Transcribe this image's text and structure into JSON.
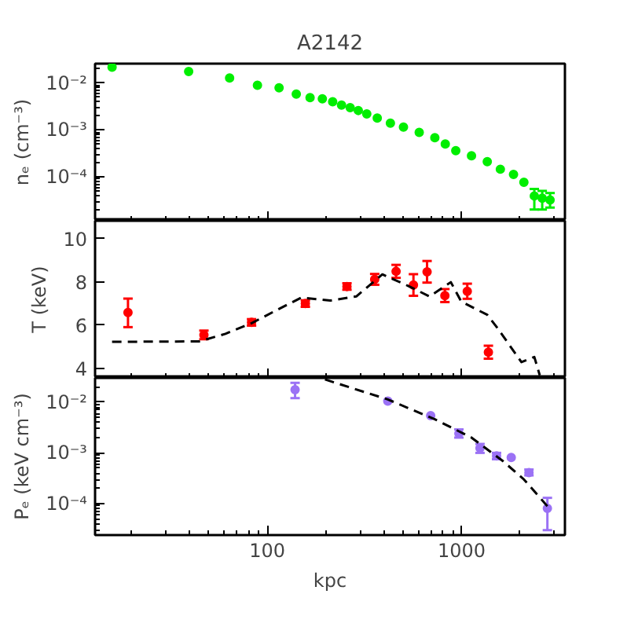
{
  "chart_data": [
    {
      "type": "scatter",
      "title": "A2142",
      "ylabel": "nₑ (cm⁻³)",
      "log": "xy",
      "marker": "circle",
      "tick_labels": "y",
      "xlim": [
        13,
        3400
      ],
      "ylim": [
        1.15e-05,
        0.026
      ],
      "yticks": [
        {
          "value": 0.01,
          "label": "10⁻²"
        },
        {
          "value": 0.001,
          "label": "10⁻³"
        },
        {
          "value": 0.0001,
          "label": "10⁻⁴"
        }
      ],
      "series": [
        {
          "color": "#00ee00",
          "x": [
            15.9,
            39.4,
            64,
            89,
            115,
            141,
            166,
            192,
            217,
            241,
            267,
            294,
            325,
            368,
            430,
            502,
            605,
            728,
            824,
            933,
            1124,
            1355,
            1582,
            1849,
            2091,
            2366,
            2598,
            2851
          ],
          "values": [
            0.0219,
            0.0177,
            0.0128,
            0.009,
            0.0079,
            0.0058,
            0.0049,
            0.0046,
            0.004,
            0.0034,
            0.003,
            0.0026,
            0.0022,
            0.0018,
            0.0014,
            0.00115,
            0.00089,
            0.00068,
            0.0005,
            0.00036,
            0.00028,
            0.00021,
            0.000145,
            0.000112,
            7.6e-05,
            3.9e-05,
            3.5e-05,
            3.2e-05
          ],
          "errors": [
            null,
            null,
            null,
            null,
            null,
            null,
            null,
            null,
            null,
            null,
            null,
            null,
            null,
            null,
            null,
            null,
            null,
            null,
            null,
            null,
            null,
            null,
            null,
            null,
            null,
            [
              2e-05,
              5.5e-05
            ],
            [
              2e-05,
              5e-05
            ],
            [
              2.2e-05,
              4.5e-05
            ]
          ]
        }
      ]
    },
    {
      "type": "scatter",
      "ylabel": "T (keV)",
      "log": "x",
      "tick_labels": "y",
      "xlim": [
        13,
        3400
      ],
      "ylim": [
        3.56,
        10.83
      ],
      "yticks": [
        4,
        6,
        8,
        10
      ],
      "series": [
        {
          "color": "#ff0000",
          "marker": "circle",
          "x": [
            19.2,
            47.2,
            83,
            157,
            257,
            357,
            460,
            565,
            664,
            820,
            1069,
            1373
          ],
          "values": [
            6.59,
            5.55,
            6.13,
            7.0,
            7.79,
            8.12,
            8.49,
            7.86,
            8.47,
            7.37,
            7.57,
            4.75
          ],
          "errors": [
            [
              5.91,
              7.23
            ],
            0.2,
            0.15,
            0.15,
            0.15,
            0.25,
            0.3,
            0.5,
            0.5,
            0.3,
            0.35,
            0.3
          ]
        },
        {
          "type": "line",
          "marker": "none",
          "line_style": "dashed",
          "color": "#000000",
          "x": [
            15.9,
            44.6,
            60.9,
            83,
            113,
            150,
            211,
            287,
            391,
            533,
            684,
            880,
            996,
            1355,
            1528,
            2031,
            2366,
            2524
          ],
          "values": [
            5.23,
            5.25,
            5.6,
            6.09,
            6.72,
            7.28,
            7.14,
            7.33,
            8.35,
            7.81,
            7.33,
            7.99,
            7.09,
            6.48,
            5.87,
            4.29,
            4.53,
            3.68
          ]
        }
      ]
    },
    {
      "type": "scatter",
      "ylabel": "Pₑ (keV cm⁻³)",
      "xlabel": "kpc",
      "log": "xy",
      "xlim": [
        13,
        3400
      ],
      "ylim": [
        2.4e-05,
        0.03
      ],
      "xticks": [
        {
          "value": 100,
          "label": "100"
        },
        {
          "value": 1000,
          "label": "1000"
        }
      ],
      "yticks": [
        {
          "value": 0.01,
          "label": "10⁻²"
        },
        {
          "value": 0.001,
          "label": "10⁻³"
        },
        {
          "value": 0.0001,
          "label": "10⁻⁴"
        }
      ],
      "series": [
        {
          "color": "#9b72f5",
          "marker": "circle",
          "x": [
            139,
            417,
            693,
            968,
            1243,
            1513,
            1800,
            2220,
            2762
          ],
          "values": [
            0.0176,
            0.0105,
            0.0054,
            0.0024,
            0.00124,
            0.00087,
            0.00081,
            0.00041,
            8.1e-05
          ],
          "errors": [
            [
              0.012,
              0.024
            ],
            null,
            null,
            [
              0.002,
              0.0029
            ],
            [
              0.001,
              0.0015
            ],
            [
              0.00075,
              0.001
            ],
            null,
            [
              0.00036,
              0.00047
            ],
            [
              3e-05,
              0.00013
            ]
          ]
        },
        {
          "type": "line",
          "marker": "none",
          "line_style": "dashed",
          "color": "#000000",
          "x": [
            198,
            417,
            728,
            1124,
            1630,
            2091,
            2762
          ],
          "values": [
            0.028,
            0.0113,
            0.0046,
            0.002,
            0.00069,
            0.0003,
            8.9e-05
          ]
        }
      ]
    }
  ]
}
